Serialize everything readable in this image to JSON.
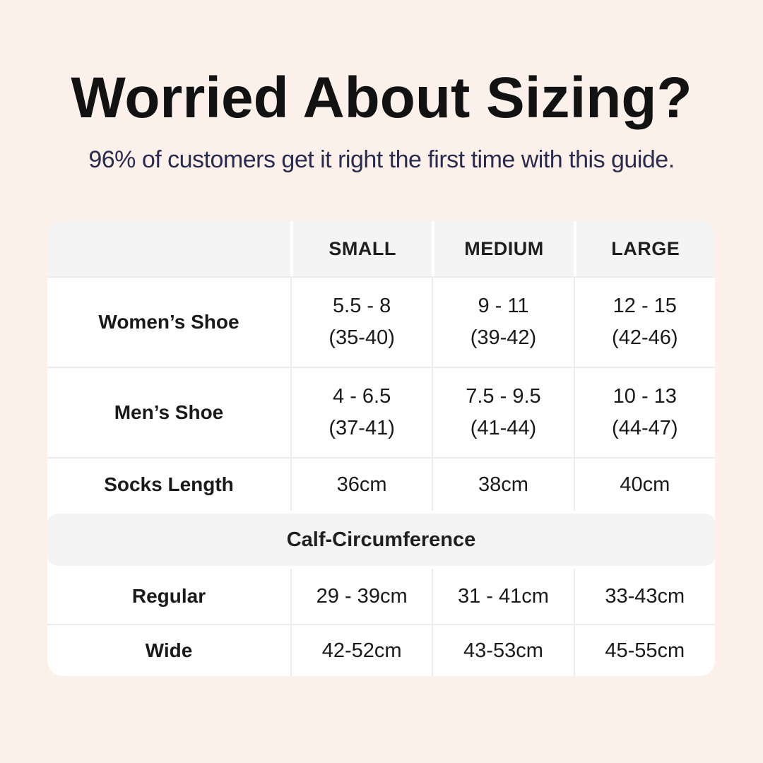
{
  "page": {
    "title": "Worried About Sizing?",
    "subtitle": "96% of customers get it right the first time with this guide."
  },
  "table": {
    "columns": [
      "",
      "SMALL",
      "MEDIUM",
      "LARGE"
    ],
    "rows": [
      {
        "label": "Women’s Shoe",
        "cells": [
          "5.5 - 8\n(35-40)",
          "9 - 11\n(39-42)",
          "12 - 15\n(42-46)"
        ]
      },
      {
        "label": "Men’s Shoe",
        "cells": [
          "4 - 6.5\n(37-41)",
          "7.5 - 9.5\n(41-44)",
          "10 - 13\n(44-47)"
        ]
      },
      {
        "label": "Socks Length",
        "cells": [
          "36cm",
          "38cm",
          "40cm"
        ]
      }
    ],
    "section_header": "Calf-Circumference",
    "section_rows": [
      {
        "label": "Regular",
        "cells": [
          "29 - 39cm",
          "31 - 41cm",
          "33-43cm"
        ]
      },
      {
        "label": "Wide",
        "cells": [
          "42-52cm",
          "43-53cm",
          "45-55cm"
        ]
      }
    ]
  },
  "colors": {
    "background": "#fbf1ea",
    "card": "#ffffff",
    "header_fill": "#f5f4f5",
    "divider": "#ececec",
    "title_text": "#121212",
    "subtitle_text": "#2b2b4d",
    "table_text": "#1a1a1a"
  },
  "chart_data": {
    "type": "table",
    "title": "Worried About Sizing?",
    "subtitle": "96% of customers get it right the first time with this guide.",
    "columns": [
      "",
      "SMALL",
      "MEDIUM",
      "LARGE"
    ],
    "rows": [
      [
        "Women’s Shoe",
        "5.5 - 8 (35-40)",
        "9 - 11 (39-42)",
        "12 - 15 (42-46)"
      ],
      [
        "Men’s Shoe",
        "4 - 6.5 (37-41)",
        "7.5 - 9.5 (41-44)",
        "10 - 13 (44-47)"
      ],
      [
        "Socks Length",
        "36cm",
        "38cm",
        "40cm"
      ],
      [
        "Calf-Circumference (section header)",
        "",
        "",
        ""
      ],
      [
        "Regular",
        "29 - 39cm",
        "31 - 41cm",
        "33-43cm"
      ],
      [
        "Wide",
        "42-52cm",
        "43-53cm",
        "45-55cm"
      ]
    ]
  }
}
